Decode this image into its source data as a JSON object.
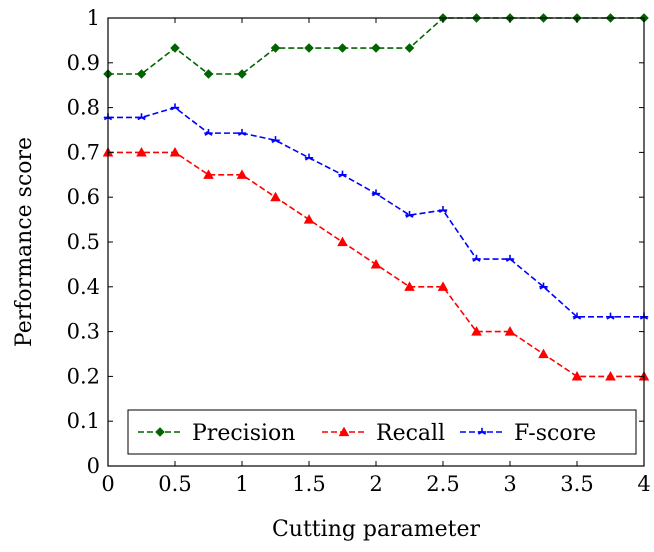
{
  "chart_data": {
    "type": "line",
    "xlabel": "Cutting parameter",
    "ylabel": "Performance score",
    "xlim": [
      0,
      4
    ],
    "ylim": [
      0,
      1
    ],
    "xticks": [
      "0",
      "0.5",
      "1",
      "1.5",
      "2",
      "2.5",
      "3",
      "3.5",
      "4"
    ],
    "yticks": [
      "0",
      "0.1",
      "0.2",
      "0.3",
      "0.4",
      "0.5",
      "0.6",
      "0.7",
      "0.8",
      "0.9",
      "1"
    ],
    "grid": false,
    "legend_position": "bottom-center",
    "x": [
      0,
      0.25,
      0.5,
      0.75,
      1,
      1.25,
      1.5,
      1.75,
      2,
      2.25,
      2.5,
      2.75,
      3,
      3.25,
      3.5,
      3.75,
      4
    ],
    "series": [
      {
        "name": "Precision",
        "color": "#006400",
        "marker": "diamond",
        "line": "dashed",
        "values": [
          0.875,
          0.875,
          0.933,
          0.875,
          0.875,
          0.933,
          0.933,
          0.933,
          0.933,
          0.933,
          1,
          1,
          1,
          1,
          1,
          1,
          1
        ]
      },
      {
        "name": "Recall",
        "color": "#ff0000",
        "marker": "triangle",
        "line": "dashed",
        "values": [
          0.7,
          0.7,
          0.7,
          0.65,
          0.65,
          0.6,
          0.55,
          0.5,
          0.45,
          0.4,
          0.4,
          0.3,
          0.3,
          0.25,
          0.2,
          0.2,
          0.2
        ]
      },
      {
        "name": "F-score",
        "color": "#0000ff",
        "marker": "tri-star",
        "line": "dashed",
        "values": [
          0.778,
          0.778,
          0.8,
          0.743,
          0.743,
          0.727,
          0.688,
          0.65,
          0.608,
          0.56,
          0.571,
          0.462,
          0.462,
          0.4,
          0.333,
          0.333,
          0.333
        ]
      }
    ]
  }
}
